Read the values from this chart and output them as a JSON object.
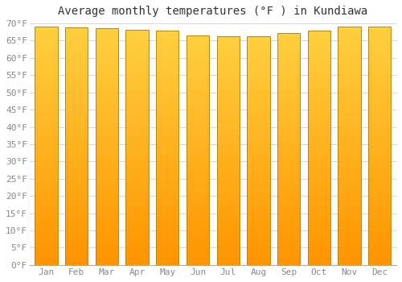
{
  "title": "Average monthly temperatures (°F ) in Kundiawa",
  "months": [
    "Jan",
    "Feb",
    "Mar",
    "Apr",
    "May",
    "Jun",
    "Jul",
    "Aug",
    "Sep",
    "Oct",
    "Nov",
    "Dec"
  ],
  "values": [
    69.1,
    68.9,
    68.5,
    68.2,
    67.8,
    66.4,
    66.2,
    66.3,
    67.1,
    68.0,
    69.1,
    69.0
  ],
  "ylim": [
    0,
    70
  ],
  "yticks": [
    0,
    5,
    10,
    15,
    20,
    25,
    30,
    35,
    40,
    45,
    50,
    55,
    60,
    65,
    70
  ],
  "bar_color_top": "#FFD040",
  "bar_color_bottom": "#FF9500",
  "bar_edge_color": "#B8860B",
  "background_color": "#FFFFFF",
  "plot_bg_color": "#FFFFFF",
  "grid_color": "#CCCCDD",
  "title_fontsize": 10,
  "tick_fontsize": 8
}
